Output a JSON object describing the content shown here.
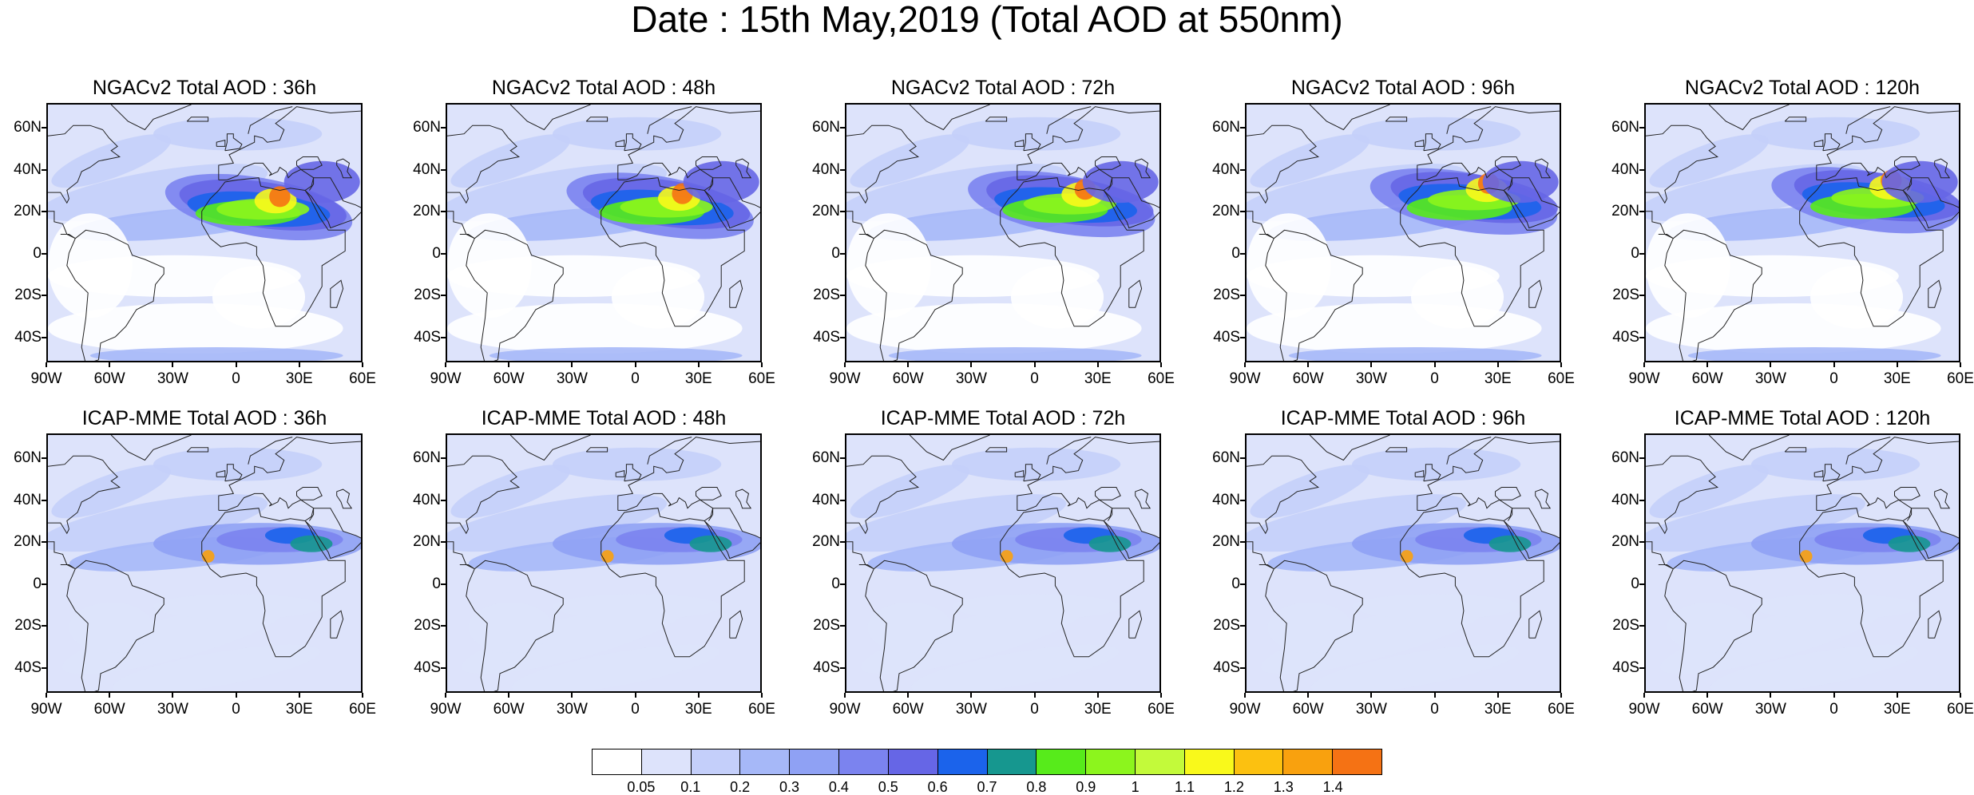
{
  "figure": {
    "title": "Date : 15th May,2019 (Total AOD at 550nm)"
  },
  "panels": [
    {
      "title": "NGACv2 Total AOD : 36h",
      "model": "NGACv2",
      "lead_hours": 36
    },
    {
      "title": "NGACv2 Total AOD : 48h",
      "model": "NGACv2",
      "lead_hours": 48
    },
    {
      "title": "NGACv2 Total AOD : 72h",
      "model": "NGACv2",
      "lead_hours": 72
    },
    {
      "title": "NGACv2 Total AOD : 96h",
      "model": "NGACv2",
      "lead_hours": 96
    },
    {
      "title": "NGACv2 Total AOD : 120h",
      "model": "NGACv2",
      "lead_hours": 120
    },
    {
      "title": "ICAP-MME Total AOD : 36h",
      "model": "ICAP-MME",
      "lead_hours": 36
    },
    {
      "title": "ICAP-MME Total AOD : 48h",
      "model": "ICAP-MME",
      "lead_hours": 48
    },
    {
      "title": "ICAP-MME Total AOD : 72h",
      "model": "ICAP-MME",
      "lead_hours": 72
    },
    {
      "title": "ICAP-MME Total AOD : 96h",
      "model": "ICAP-MME",
      "lead_hours": 96
    },
    {
      "title": "ICAP-MME Total AOD : 120h",
      "model": "ICAP-MME",
      "lead_hours": 120
    }
  ],
  "axes": {
    "lat_labels": [
      "60N",
      "40N",
      "20N",
      "0",
      "20S",
      "40S"
    ],
    "lon_labels": [
      "90W",
      "60W",
      "30W",
      "0",
      "30E",
      "60E"
    ],
    "lon_range": [
      -90,
      60
    ],
    "lat_range": [
      -52,
      72
    ]
  },
  "colorbar": {
    "labels": [
      "0.05",
      "0.1",
      "0.2",
      "0.3",
      "0.4",
      "0.5",
      "0.6",
      "0.7",
      "0.8",
      "0.9",
      "1",
      "1.1",
      "1.2",
      "1.3",
      "1.4"
    ],
    "colors": [
      "#ffffff",
      "#dde3fb",
      "#c4cffa",
      "#a6b8f8",
      "#8fa1f4",
      "#7b83ef",
      "#6666e6",
      "#1b63eb",
      "#16978f",
      "#57eb1b",
      "#8cf51d",
      "#c3fa3a",
      "#f9f91b",
      "#fcc110",
      "#f9a10e",
      "#f57214",
      "#f52011"
    ]
  }
}
